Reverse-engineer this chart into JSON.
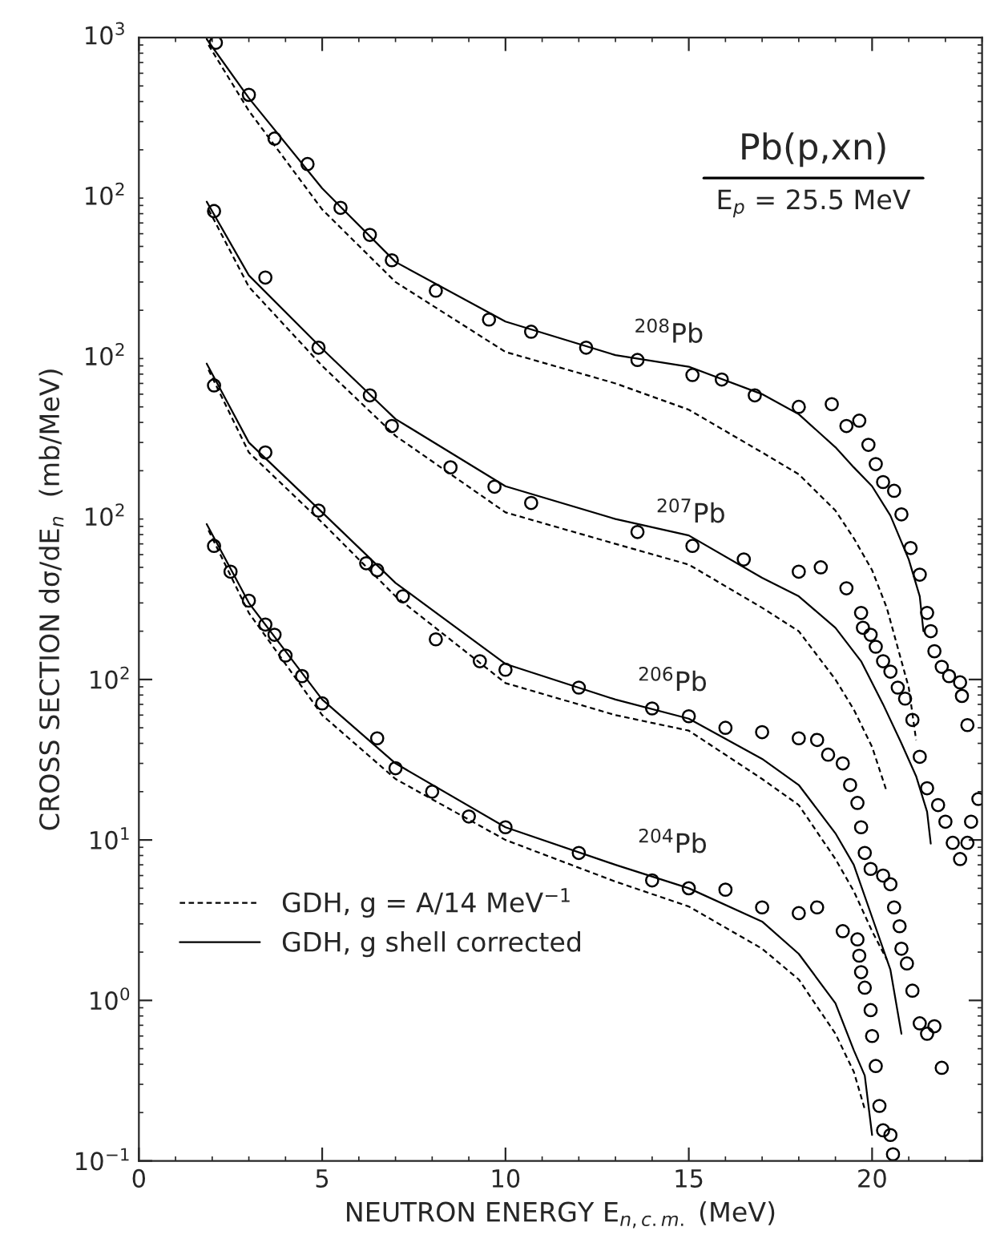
{
  "chart_data": {
    "type": "scatter",
    "title": "Pb(p,xn)",
    "subtitle": "E$_{p}$ = 25.5 MeV",
    "xlabel": "NEUTRON ENERGY E$_{n,c.m.}$ (MeV)",
    "ylabel": "CROSS SECTION dσ/dE$_{n}$  (mb/MeV)",
    "log": "y",
    "xlim": [
      0,
      23
    ],
    "ylim": [
      0.1,
      1000000
    ],
    "xticks": [
      0,
      5,
      10,
      15,
      20
    ],
    "yticks": [
      {
        "value": 0.1,
        "label": "10$^{−1}$"
      },
      {
        "value": 1,
        "label": "10$^{0}$"
      },
      {
        "value": 10,
        "label": "10$^{1}$"
      },
      {
        "value": 100,
        "label": "10$^{2}$"
      }
    ],
    "grid": false,
    "legend": "bottom left",
    "annotations": [
      "$^{204}$Pb",
      "$^{206}$Pb",
      "$^{207}$Pb",
      "$^{208}$Pb",
      "10$^{2}$",
      "10$^{2}$",
      "10$^{2}$",
      "10$^{3}$"
    ],
    "series": [
      {
        "marker": "circle",
        "color": "#000000",
        "x": [
          2.05,
          2.5,
          3.0,
          3.45,
          3.7,
          4.0,
          4.45,
          5.0,
          6.5,
          7.0,
          8.0,
          9.0,
          10,
          12,
          14,
          15,
          16,
          17,
          18,
          18.5,
          19.2,
          19.6,
          19.65,
          19.7,
          19.8,
          19.96,
          20.0,
          20.1,
          20.2,
          20.3,
          20.5,
          20.57
        ],
        "values": [
          680,
          470,
          310,
          220,
          190,
          141,
          105,
          71,
          43,
          28,
          20,
          14,
          12,
          8.3,
          5.6,
          5.0,
          4.9,
          3.8,
          3.5,
          3.8,
          2.7,
          2.4,
          1.9,
          1.5,
          1.2,
          0.87,
          0.6,
          0.39,
          0.22,
          0.155,
          0.145,
          0.11
        ]
      },
      {
        "marker": "circle",
        "color": "#000000",
        "x": [
          2.05,
          3.45,
          4.9,
          6.2,
          6.5,
          7.2,
          8.1,
          9.3,
          10,
          12,
          14,
          15,
          16,
          17,
          18,
          18.5,
          18.8,
          19.2,
          19.4,
          19.6,
          19.7,
          19.8,
          19.96,
          20.3,
          20.5,
          20.6,
          20.75,
          20.8,
          20.95,
          21.1,
          21.3,
          21.5,
          21.7,
          21.9
        ],
        "values": [
          6800,
          2600,
          1130,
          530,
          480,
          330,
          178,
          130,
          115,
          89,
          66,
          59,
          50,
          47,
          43,
          42,
          34,
          30,
          22,
          17,
          12,
          8.3,
          6.6,
          6.0,
          5.3,
          3.8,
          2.9,
          2.1,
          1.7,
          1.15,
          0.72,
          0.62,
          0.69,
          0.38
        ]
      },
      {
        "marker": "circle",
        "color": "#000000",
        "x": [
          2.05,
          3.45,
          4.9,
          6.3,
          6.9,
          8.5,
          9.7,
          10.7,
          13.6,
          15.1,
          16.5,
          18,
          18.6,
          19.3,
          19.7,
          19.75,
          19.96,
          20.1,
          20.3,
          20.5,
          20.7,
          20.9,
          21.1,
          21.3,
          21.5,
          21.8,
          22.0,
          22.2,
          22.4,
          22.6,
          22.7,
          22.9
        ],
        "values": [
          83000,
          32000,
          11700,
          5900,
          3800,
          2100,
          1590,
          1260,
          830,
          680,
          560,
          470,
          500,
          370,
          260,
          210,
          190,
          160,
          130,
          112,
          89,
          76,
          56,
          33,
          21,
          16.5,
          13,
          9.6,
          7.6,
          9.6,
          13,
          18
        ]
      },
      {
        "marker": "circle",
        "color": "#000000",
        "x": [
          2.1,
          3.0,
          3.7,
          4.6,
          5.5,
          6.3,
          6.9,
          8.1,
          9.55,
          10.7,
          12.2,
          13.6,
          15.1,
          15.9,
          16.8,
          18.0,
          18.9,
          19.3,
          19.65,
          19.9,
          20.1,
          20.3,
          20.6,
          20.8,
          21.05,
          21.3,
          21.5,
          21.6,
          21.7,
          21.9,
          22.1,
          22.4,
          22.45,
          22.6
        ],
        "values": [
          930000,
          440000,
          235000,
          163000,
          87000,
          59000,
          41000,
          26500,
          17500,
          14700,
          11700,
          9800,
          7900,
          7400,
          5900,
          5000,
          5200,
          3800,
          4100,
          2900,
          2200,
          1700,
          1500,
          1070,
          660,
          450,
          260,
          200,
          150,
          120,
          105,
          96,
          79,
          52
        ]
      },
      {
        "type": "line",
        "line_style": "dashed",
        "name": "GDH, g = A/14 MeV$^{−1}$",
        "color": "#000000",
        "x": [
          1.9,
          3,
          5,
          7,
          10,
          13,
          15,
          17,
          18,
          19,
          19.5,
          19.8
        ],
        "values": [
          850,
          260,
          60,
          24,
          10,
          5.5,
          3.85,
          2.1,
          1.35,
          0.62,
          0.36,
          0.21
        ]
      },
      {
        "type": "line",
        "line_style": "solid",
        "name": "GDH, g shell corrected",
        "color": "#000000",
        "x": [
          1.85,
          3,
          5,
          7,
          10,
          13,
          15,
          17,
          18,
          19,
          19.5,
          19.8,
          20.0
        ],
        "values": [
          930,
          300,
          75,
          30,
          12,
          7,
          5,
          3.1,
          1.95,
          0.96,
          0.49,
          0.34,
          0.145
        ]
      },
      {
        "type": "line",
        "line_style": "dashed",
        "color": "#000000",
        "x": [
          1.9,
          3,
          5,
          7,
          10,
          13,
          15,
          17,
          18,
          19,
          19.5,
          20,
          20.4
        ],
        "values": [
          8500,
          2600,
          950,
          330,
          95,
          60,
          48,
          24,
          16.5,
          7.6,
          4.8,
          2.7,
          1.8
        ]
      },
      {
        "type": "line",
        "line_style": "solid",
        "color": "#000000",
        "x": [
          1.85,
          3,
          5,
          7,
          10,
          13,
          15,
          17,
          18,
          19,
          19.5,
          20,
          20.5,
          20.8
        ],
        "values": [
          9300,
          3000,
          1100,
          400,
          125,
          75,
          57,
          32,
          22,
          11,
          7,
          3.3,
          1.55,
          0.62
        ]
      },
      {
        "type": "line",
        "line_style": "dashed",
        "color": "#000000",
        "x": [
          1.9,
          3,
          5,
          7,
          10,
          13,
          15,
          17,
          18,
          19,
          19.5,
          20,
          20.4
        ],
        "values": [
          85000,
          28000,
          9000,
          3300,
          1100,
          700,
          520,
          280,
          200,
          100,
          65,
          38,
          20
        ]
      },
      {
        "type": "line",
        "line_style": "solid",
        "color": "#000000",
        "x": [
          1.85,
          3,
          5,
          7,
          10,
          13,
          15,
          17,
          18,
          19,
          19.7,
          20.3,
          20.8,
          21.2,
          21.5,
          21.6
        ],
        "values": [
          95000,
          33000,
          11500,
          4200,
          1600,
          1000,
          790,
          430,
          330,
          210,
          130,
          70,
          40,
          25,
          15,
          9.5
        ]
      },
      {
        "type": "line",
        "line_style": "dashed",
        "color": "#000000",
        "x": [
          1.9,
          3,
          5,
          7,
          10,
          13,
          15,
          17,
          18,
          19,
          19.5,
          20,
          20.4,
          21,
          21.2
        ],
        "values": [
          900000,
          350000,
          85000,
          30000,
          11000,
          7000,
          4800,
          2600,
          1900,
          1130,
          760,
          480,
          280,
          89,
          42
        ]
      },
      {
        "type": "line",
        "line_style": "solid",
        "color": "#000000",
        "x": [
          1.85,
          3,
          5,
          7,
          10,
          13,
          15,
          17,
          18,
          19,
          19.5,
          20,
          20.5,
          21,
          21.3,
          21.4
        ],
        "values": [
          980000,
          420000,
          115000,
          40000,
          17000,
          10500,
          8900,
          6000,
          4500,
          2800,
          2100,
          1600,
          1050,
          560,
          330,
          200
        ]
      }
    ]
  }
}
